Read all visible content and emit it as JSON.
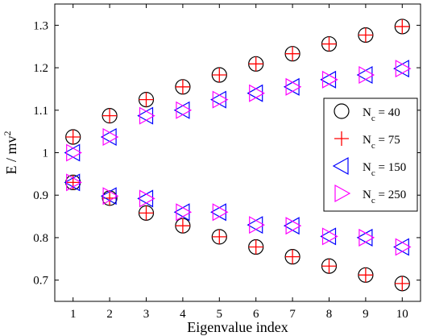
{
  "chart_data": {
    "type": "scatter",
    "title": "",
    "xlabel": "Eigenvalue index",
    "ylabel": "E / mv",
    "ylabel_superscript": "2",
    "xlim": [
      0.5,
      10.5
    ],
    "ylim": [
      0.65,
      1.35
    ],
    "xticks": [
      1,
      2,
      3,
      4,
      5,
      6,
      7,
      8,
      9,
      10
    ],
    "yticks": [
      0.7,
      0.8,
      0.9,
      1,
      1.1,
      1.2,
      1.3
    ],
    "ytick_labels": [
      "0.7",
      "0.8",
      "0.9",
      "1",
      "1.1",
      "1.2",
      "1.3"
    ],
    "grid": false,
    "legend_position": "right",
    "x": [
      1,
      2,
      3,
      4,
      5,
      6,
      7,
      8,
      9,
      10
    ],
    "series": [
      {
        "name_base": "N",
        "name_sub": "c",
        "name_rest": " = 40",
        "marker": "circle",
        "color": "#000000",
        "upper": [
          1.037,
          1.087,
          1.125,
          1.155,
          1.183,
          1.209,
          1.233,
          1.256,
          1.277,
          1.297
        ],
        "lower": [
          0.93,
          0.893,
          0.858,
          0.828,
          0.802,
          0.778,
          0.755,
          0.733,
          0.712,
          0.692
        ]
      },
      {
        "name_base": "N",
        "name_sub": "c",
        "name_rest": " = 75",
        "marker": "plus",
        "color": "#ff0000",
        "upper": [
          1.037,
          1.087,
          1.125,
          1.155,
          1.183,
          1.209,
          1.233,
          1.256,
          1.277,
          1.297
        ],
        "lower": [
          0.93,
          0.893,
          0.858,
          0.828,
          0.802,
          0.778,
          0.755,
          0.733,
          0.712,
          0.692
        ]
      },
      {
        "name_base": "N",
        "name_sub": "c",
        "name_rest": " = 150",
        "marker": "triangle-left",
        "color": "#0000ff",
        "upper": [
          1.0,
          1.037,
          1.087,
          1.1,
          1.125,
          1.14,
          1.155,
          1.172,
          1.183,
          1.198
        ],
        "lower": [
          0.93,
          0.898,
          0.892,
          0.86,
          0.86,
          0.83,
          0.828,
          0.803,
          0.8,
          0.778
        ]
      },
      {
        "name_base": "N",
        "name_sub": "c",
        "name_rest": " = 250",
        "marker": "triangle-right",
        "color": "#ff00ff",
        "upper": [
          1.0,
          1.037,
          1.087,
          1.1,
          1.125,
          1.14,
          1.155,
          1.172,
          1.183,
          1.198
        ],
        "lower": [
          0.93,
          0.898,
          0.892,
          0.86,
          0.86,
          0.83,
          0.828,
          0.803,
          0.8,
          0.778
        ]
      }
    ]
  }
}
